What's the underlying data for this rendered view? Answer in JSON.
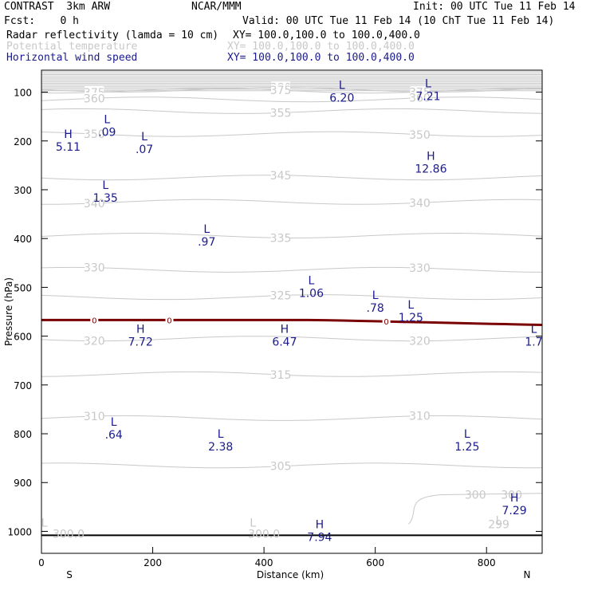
{
  "header": {
    "model": "CONTRAST  3km ARW",
    "org": "NCAR/MMM",
    "init": "Init: 00 UTC Tue 11 Feb 14",
    "fcst": "Fcst:    0 h",
    "valid": "Valid: 00 UTC Tue 11 Feb 14 (10 ChT Tue 11 Feb 14)",
    "field1": "Radar reflectivity (lamda = 10 cm)",
    "field1_xy": "XY= 100.0,100.0 to 100.0,400.0",
    "field2": "Potential temperature",
    "field2_xy": "XY= 100.0,100.0 to 100.0,400.0",
    "field3": "Horizontal wind speed",
    "field3_xy": "XY= 100.0,100.0 to 100.0,400.0"
  },
  "colors": {
    "text": "#000000",
    "theta": "#c8c8c8",
    "wind": "#1a1a8c",
    "freezing": "#7a0000",
    "ground": "#000000"
  },
  "chart_data": {
    "type": "line",
    "xlabel": "Distance (km)",
    "ylabel": "Pressure (hPa)",
    "xlim": [
      0,
      900
    ],
    "ylim": [
      1045,
      55
    ],
    "x_ticks": [
      "0",
      "200",
      "400",
      "600",
      "800"
    ],
    "x_tick_values": [
      0,
      200,
      400,
      600,
      800
    ],
    "y_ticks": [
      "100",
      "200",
      "300",
      "400",
      "500",
      "600",
      "700",
      "800",
      "900",
      "1000"
    ],
    "y_tick_values": [
      100,
      200,
      300,
      400,
      500,
      600,
      700,
      800,
      900,
      1000
    ],
    "endpoints": {
      "left": "S",
      "right": "N"
    },
    "theta_contours": [
      {
        "label": "380",
        "p": 95
      },
      {
        "label": "375",
        "p": 97
      },
      {
        "label": "360",
        "p": 115
      },
      {
        "label": "355",
        "p": 139
      },
      {
        "label": "350",
        "p": 186
      },
      {
        "label": "345",
        "p": 275
      },
      {
        "label": "340",
        "p": 325
      },
      {
        "label": "335",
        "p": 394
      },
      {
        "label": "330",
        "p": 464
      },
      {
        "label": "325",
        "p": 520
      },
      {
        "label": "320",
        "p": 605
      },
      {
        "label": "315",
        "p": 678
      },
      {
        "label": "310",
        "p": 768
      },
      {
        "label": "305",
        "p": 865
      },
      {
        "label": "300",
        "p": 925
      },
      {
        "label": "299",
        "p": 985
      },
      {
        "label": "300.0",
        "p": 1005
      }
    ],
    "freezing_level": {
      "label": "0",
      "p_start": 567,
      "p_end": 577
    },
    "wind_extrema": [
      {
        "type": "L",
        "value": "6.20",
        "x": 540,
        "p": 100
      },
      {
        "type": "L",
        "value": "7.21",
        "x": 695,
        "p": 97
      },
      {
        "type": "L",
        "value": ".09",
        "x": 118,
        "p": 170
      },
      {
        "type": "H",
        "value": "5.11",
        "x": 48,
        "p": 200
      },
      {
        "type": "L",
        "value": ".07",
        "x": 185,
        "p": 205
      },
      {
        "type": "H",
        "value": "12.86",
        "x": 700,
        "p": 245
      },
      {
        "type": "L",
        "value": "1.35",
        "x": 115,
        "p": 305
      },
      {
        "type": "L",
        "value": ".97",
        "x": 297,
        "p": 395
      },
      {
        "type": "L",
        "value": "1.06",
        "x": 485,
        "p": 500
      },
      {
        "type": "L",
        "value": ".78",
        "x": 600,
        "p": 530
      },
      {
        "type": "L",
        "value": "1.25",
        "x": 664,
        "p": 550
      },
      {
        "type": "H",
        "value": "7.72",
        "x": 178,
        "p": 600
      },
      {
        "type": "H",
        "value": "6.47",
        "x": 437,
        "p": 600
      },
      {
        "type": "L",
        "value": "1.7",
        "x": 885,
        "p": 600
      },
      {
        "type": "L",
        "value": ".64",
        "x": 130,
        "p": 790
      },
      {
        "type": "L",
        "value": "2.38",
        "x": 322,
        "p": 815
      },
      {
        "type": "L",
        "value": "1.25",
        "x": 765,
        "p": 815
      },
      {
        "type": "H",
        "value": "7.29",
        "x": 850,
        "p": 945
      },
      {
        "type": "H",
        "value": "7.94",
        "x": 500,
        "p": 1000
      }
    ],
    "gray_lows": [
      {
        "label": "L",
        "x": 5,
        "p": 990
      },
      {
        "label": "L",
        "x": 380,
        "p": 990
      },
      {
        "label": "L",
        "x": 822,
        "p": 985
      }
    ]
  }
}
